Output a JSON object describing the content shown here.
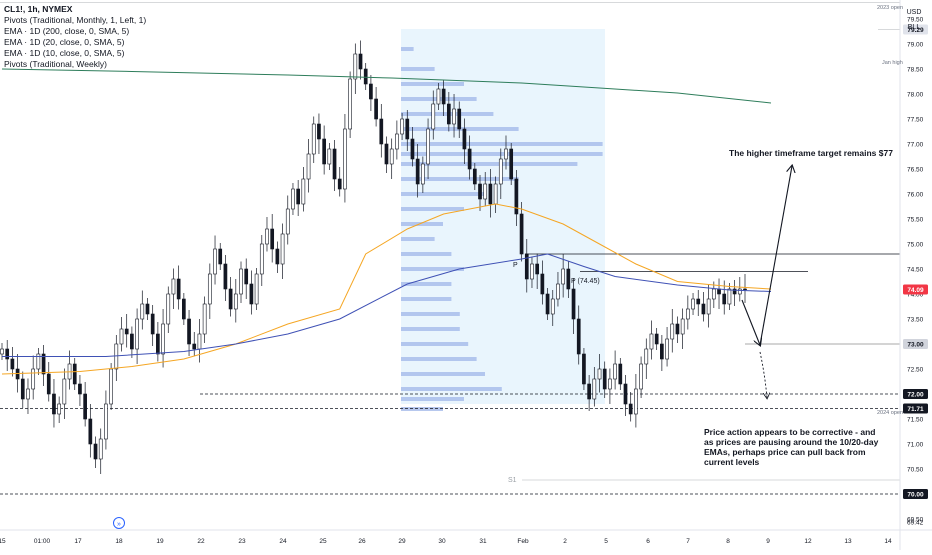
{
  "legend": {
    "symbol": "CL1!, 1h, NYMEX",
    "lines": [
      "Pivots (Traditional, Monthly, 1, Left, 1)",
      "EMA · 1D (200, close, 0, SMA, 5)",
      "EMA · 1D (20, close, 0, SMA, 5)",
      "EMA · 1D (10, close, 0, SMA, 5)",
      "Pivots (Traditional, Weekly)"
    ]
  },
  "currency": "USD",
  "unit": "BLL",
  "colors": {
    "up": "#131722",
    "down": "#131722",
    "ema200": "#2e7d5b",
    "ema20": "#f5a623",
    "ema10": "#3f51b5",
    "volume_profile": "#9fb6e8",
    "profile_bg": "#e3f2fd",
    "current_price_tag": "#f23645",
    "level_tag": "#131722"
  },
  "annotations": {
    "target_text": "The higher timeframe target remains $77",
    "commentary": [
      "Price action appears to be corrective  - and",
      "as prices are pausing around the 10/20-day",
      "EMAs, perhaps price can pull back from",
      "current levels"
    ],
    "pivot_p_label": "P",
    "pivot_p_weekly_label": "P (74.45)",
    "s1_label": "S1",
    "jan_high_label": "Jan high",
    "open_2023_label": "2023 open",
    "open_2024_label": "2024 open"
  },
  "price_tags": {
    "jan_high": "79.29",
    "current": "74.09",
    "level_73": "73.00",
    "level_72": "72.00",
    "open_2024": "71.71",
    "level_70": "70.00"
  },
  "chart_data": {
    "type": "candlestick",
    "y_ticks": [
      "79.50",
      "79.00",
      "78.50",
      "78.00",
      "77.50",
      "77.00",
      "76.50",
      "76.00",
      "75.50",
      "75.00",
      "74.50",
      "74.00",
      "73.50",
      "73.00",
      "72.50",
      "72.00",
      "71.50",
      "71.00",
      "70.50",
      "70.00",
      "69.50",
      "69.42"
    ],
    "x_ticks": [
      "15",
      "01:00",
      "17",
      "18",
      "19",
      "22",
      "23",
      "24",
      "25",
      "26",
      "29",
      "30",
      "31",
      "Feb",
      "2",
      "5",
      "6",
      "7",
      "8",
      "9",
      "12",
      "13",
      "14"
    ],
    "ylim": [
      69.3,
      79.9
    ],
    "levels": {
      "jan_high": 79.29,
      "pivot_monthly": 74.8,
      "pivot_weekly": 74.45,
      "level_73": 73.0,
      "level_72": 72.0,
      "open_2024": 71.71,
      "s1": 70.28,
      "level_70": 70.0
    },
    "closes": [
      72.9,
      72.7,
      72.5,
      72.3,
      71.9,
      72.1,
      72.5,
      72.8,
      72.4,
      72.0,
      71.6,
      71.8,
      72.3,
      72.6,
      72.2,
      72.0,
      71.5,
      71.0,
      70.7,
      71.1,
      71.8,
      72.5,
      73.0,
      73.3,
      73.2,
      72.9,
      73.5,
      73.8,
      73.6,
      73.2,
      72.8,
      73.4,
      74.0,
      74.3,
      73.9,
      73.5,
      73.0,
      72.9,
      73.2,
      73.8,
      74.4,
      74.9,
      74.6,
      74.1,
      73.7,
      74.0,
      74.5,
      74.2,
      73.8,
      74.4,
      75.0,
      75.3,
      74.9,
      74.6,
      75.2,
      75.7,
      76.1,
      75.8,
      76.3,
      76.8,
      77.4,
      77.1,
      76.6,
      76.9,
      76.3,
      76.1,
      77.3,
      78.3,
      78.8,
      78.5,
      78.2,
      77.9,
      77.5,
      77.0,
      76.6,
      76.9,
      77.2,
      77.5,
      77.1,
      76.7,
      76.2,
      76.6,
      77.3,
      77.8,
      78.1,
      77.8,
      77.4,
      77.7,
      77.3,
      76.9,
      76.5,
      76.2,
      75.9,
      76.2,
      75.8,
      76.2,
      76.7,
      76.9,
      76.3,
      75.6,
      74.8,
      74.3,
      74.6,
      74.4,
      74.0,
      73.6,
      73.9,
      74.2,
      74.5,
      74.1,
      73.5,
      72.8,
      72.2,
      71.9,
      72.3,
      72.5,
      72.1,
      72.3,
      72.6,
      72.2,
      71.8,
      71.6,
      72.1,
      72.6,
      72.9,
      73.2,
      73.0,
      72.7,
      73.1,
      73.4,
      73.2,
      73.5,
      73.7,
      73.9,
      73.8,
      73.6,
      73.9,
      74.1,
      74.0,
      73.8,
      74.1,
      74.0,
      74.1,
      74.09
    ],
    "ema200": [
      [
        0,
        78.5
      ],
      [
        25,
        78.45
      ],
      [
        55,
        78.38
      ],
      [
        75,
        78.32
      ],
      [
        85,
        78.28
      ],
      [
        100,
        78.22
      ],
      [
        115,
        78.12
      ],
      [
        130,
        78.02
      ],
      [
        148,
        77.82
      ]
    ],
    "ema20": [
      [
        0,
        72.4
      ],
      [
        15,
        72.45
      ],
      [
        25,
        72.55
      ],
      [
        35,
        72.7
      ],
      [
        45,
        73.0
      ],
      [
        55,
        73.4
      ],
      [
        65,
        73.7
      ],
      [
        70,
        74.8
      ],
      [
        78,
        75.3
      ],
      [
        85,
        75.6
      ],
      [
        95,
        75.8
      ],
      [
        100,
        75.7
      ],
      [
        108,
        75.4
      ],
      [
        115,
        75.0
      ],
      [
        122,
        74.6
      ],
      [
        130,
        74.25
      ],
      [
        140,
        74.15
      ],
      [
        148,
        74.1
      ]
    ],
    "ema10": [
      [
        0,
        72.75
      ],
      [
        20,
        72.75
      ],
      [
        35,
        72.85
      ],
      [
        45,
        73.0
      ],
      [
        55,
        73.2
      ],
      [
        65,
        73.5
      ],
      [
        78,
        74.2
      ],
      [
        88,
        74.5
      ],
      [
        100,
        74.7
      ],
      [
        105,
        74.8
      ],
      [
        112,
        74.55
      ],
      [
        118,
        74.35
      ],
      [
        130,
        74.18
      ],
      [
        140,
        74.08
      ],
      [
        148,
        74.05
      ]
    ],
    "volume_profile": [
      [
        78.9,
        3
      ],
      [
        78.5,
        8
      ],
      [
        78.2,
        15
      ],
      [
        77.9,
        18
      ],
      [
        77.6,
        22
      ],
      [
        77.3,
        28
      ],
      [
        77.0,
        48
      ],
      [
        76.8,
        48
      ],
      [
        76.6,
        42
      ],
      [
        76.3,
        28
      ],
      [
        76.0,
        20
      ],
      [
        75.7,
        15
      ],
      [
        75.4,
        10
      ],
      [
        75.1,
        8
      ],
      [
        74.8,
        12
      ],
      [
        74.5,
        15
      ],
      [
        74.2,
        12
      ],
      [
        73.9,
        12
      ],
      [
        73.6,
        14
      ],
      [
        73.3,
        14
      ],
      [
        73.0,
        16
      ],
      [
        72.7,
        18
      ],
      [
        72.4,
        20
      ],
      [
        72.1,
        24
      ],
      [
        71.9,
        15
      ],
      [
        71.7,
        10
      ]
    ]
  }
}
